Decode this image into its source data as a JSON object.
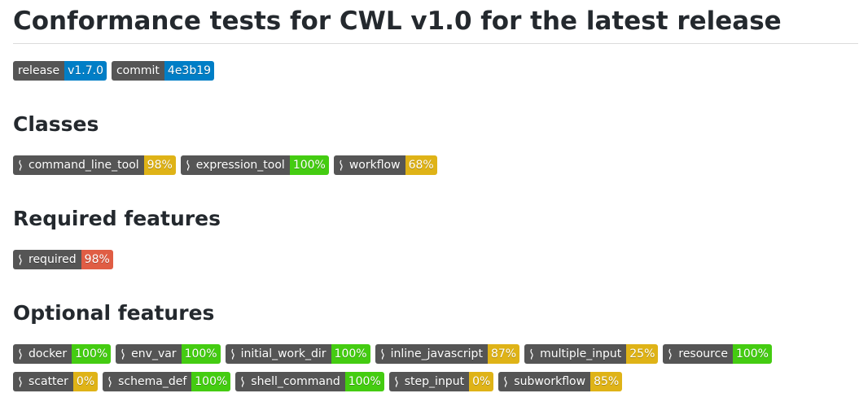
{
  "title": "Conformance tests for CWL v1.0 for the latest release",
  "sections": [
    {
      "badges": [
        {
          "label": "release",
          "message": "v1.7.0",
          "color": "#007ec6"
        },
        {
          "label": "commit",
          "message": "4e3b19",
          "color": "#007ec6"
        }
      ]
    },
    {
      "heading": "Classes",
      "badges": [
        {
          "label": "command_line_tool",
          "message": "98%",
          "color": "#dfb317"
        },
        {
          "label": "expression_tool",
          "message": "100%",
          "color": "#44cc11"
        },
        {
          "label": "workflow",
          "message": "68%",
          "color": "#dfb317"
        }
      ]
    },
    {
      "heading": "Required features",
      "badges": [
        {
          "label": "required",
          "message": "98%",
          "color": "#e05d44"
        }
      ]
    },
    {
      "heading": "Optional features",
      "badges": [
        {
          "label": "docker",
          "message": "100%",
          "color": "#44cc11"
        },
        {
          "label": "env_var",
          "message": "100%",
          "color": "#44cc11"
        },
        {
          "label": "initial_work_dir",
          "message": "100%",
          "color": "#44cc11"
        },
        {
          "label": "inline_javascript",
          "message": "87%",
          "color": "#dfb317"
        },
        {
          "label": "multiple_input",
          "message": "25%",
          "color": "#dfb317"
        },
        {
          "label": "resource",
          "message": "100%",
          "color": "#44cc11"
        },
        {
          "label": "scatter",
          "message": "0%",
          "color": "#dfb317"
        },
        {
          "label": "schema_def",
          "message": "100%",
          "color": "#44cc11"
        },
        {
          "label": "shell_command",
          "message": "100%",
          "color": "#44cc11"
        },
        {
          "label": "step_input",
          "message": "0%",
          "color": "#dfb317"
        },
        {
          "label": "subworkflow",
          "message": "85%",
          "color": "#dfb317"
        }
      ]
    }
  ]
}
